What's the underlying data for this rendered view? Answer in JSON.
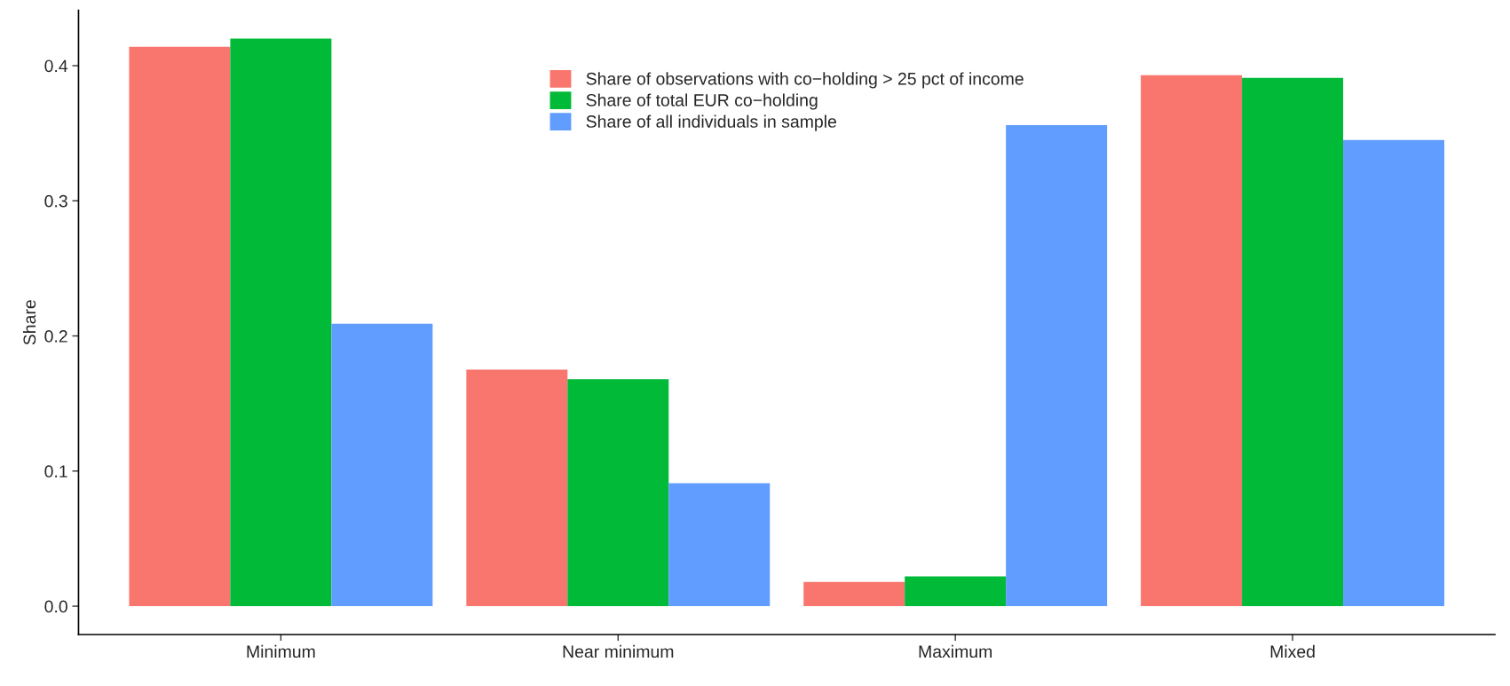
{
  "chart_data": {
    "type": "bar",
    "ylabel": "Share",
    "categories": [
      "Minimum",
      "Near minimum",
      "Maximum",
      "Mixed"
    ],
    "series": [
      {
        "name": "Share of observations with co−holding > 25 pct of income",
        "color": "#f8766d",
        "values": [
          0.414,
          0.175,
          0.018,
          0.393
        ]
      },
      {
        "name": "Share of total EUR co−holding",
        "color": "#00ba38",
        "values": [
          0.42,
          0.168,
          0.022,
          0.391
        ]
      },
      {
        "name": "Share of all individuals in sample",
        "color": "#619cff",
        "values": [
          0.209,
          0.091,
          0.356,
          0.345
        ]
      }
    ],
    "ylim": [
      -0.021,
      0.441
    ],
    "yticks": [
      {
        "value": 0,
        "label": "0.0"
      },
      0.1,
      0.2,
      0.3,
      0.4
    ],
    "grid": false,
    "legend": "top"
  }
}
